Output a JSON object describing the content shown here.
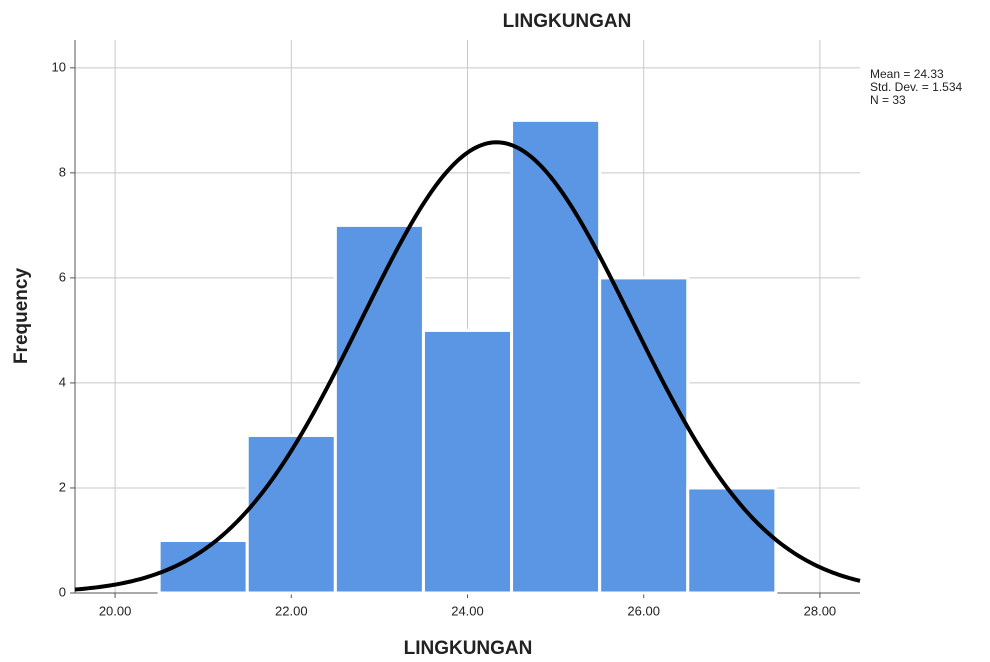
{
  "chart_data": {
    "type": "histogram",
    "title": "LINGKUNGAN",
    "x_label": "LINGKUNGAN",
    "y_label": "Frequency",
    "bins": [
      20.5,
      21.5,
      22.5,
      23.5,
      24.5,
      25.5,
      26.5,
      27.5
    ],
    "values": [
      1,
      3,
      7,
      5,
      9,
      6,
      2
    ],
    "color": "#5a96e3",
    "xlim": [
      19.545,
      28.455
    ],
    "xticks": [
      {
        "value": 20,
        "label": "20.00"
      },
      {
        "value": 22,
        "label": "22.00"
      },
      {
        "value": 24,
        "label": "24.00"
      },
      {
        "value": 26,
        "label": "26.00"
      },
      {
        "value": 28,
        "label": "28.00"
      }
    ],
    "ylim": [
      0,
      10.53
    ],
    "yticks": [
      0,
      2,
      4,
      6,
      8,
      10
    ],
    "grid": true,
    "normal": {
      "mean": 24.33,
      "std": 1.534,
      "n": 33,
      "labels": [
        "Mean = 24.33",
        "Std. Dev. = 1.534",
        "N = 33"
      ]
    }
  }
}
